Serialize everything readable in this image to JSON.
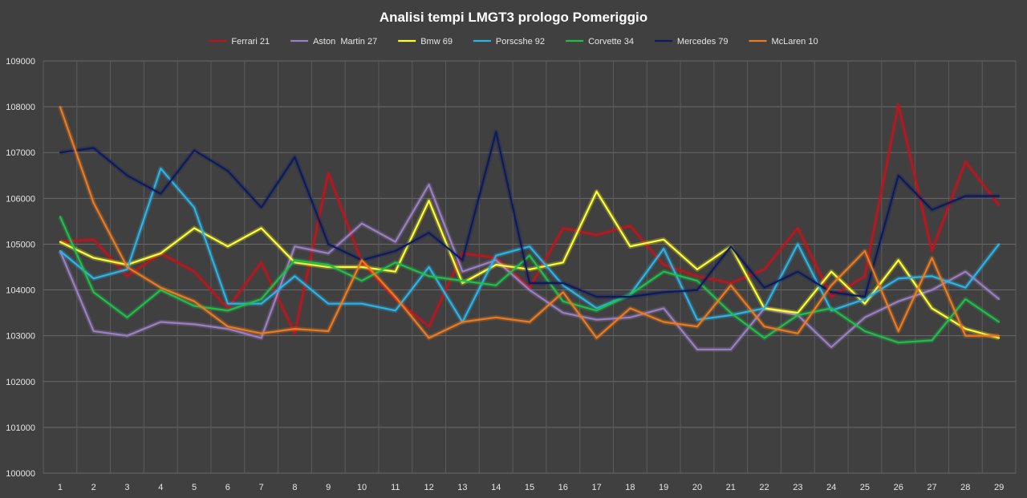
{
  "chart_data": {
    "type": "line",
    "title": "Analisi tempi LMGT3 prologo Pomeriggio",
    "xlabel": "",
    "ylabel": "",
    "ylim": [
      100000,
      109000
    ],
    "yticks": [
      100000,
      101000,
      102000,
      103000,
      104000,
      105000,
      106000,
      107000,
      108000,
      109000
    ],
    "x": [
      1,
      2,
      3,
      4,
      5,
      6,
      7,
      8,
      9,
      10,
      11,
      12,
      13,
      14,
      15,
      16,
      17,
      18,
      19,
      20,
      21,
      22,
      23,
      24,
      25,
      26,
      27,
      28,
      29
    ],
    "grid": true,
    "legend_position": "top",
    "series": [
      {
        "name": "Ferrari 21",
        "color": "#c0141c",
        "values": [
          105050,
          105100,
          104300,
          104800,
          104400,
          103600,
          104600,
          103050,
          106550,
          104600,
          103800,
          103200,
          104800,
          104700,
          104050,
          105350,
          105200,
          105400,
          104550,
          104300,
          104150,
          104450,
          105350,
          103850,
          104300,
          108050,
          104850,
          106800,
          105850
        ]
      },
      {
        "name": "Aston  Martin 27",
        "color": "#9b7fc4",
        "values": [
          104850,
          103100,
          103000,
          103300,
          103250,
          103150,
          102950,
          104950,
          104800,
          105450,
          105050,
          106300,
          104400,
          104650,
          104000,
          103500,
          103350,
          103400,
          103600,
          102700,
          102700,
          103600,
          103450,
          102750,
          103400,
          103750,
          104000,
          104400,
          103800
        ]
      },
      {
        "name": "Bmw 69",
        "color": "#ffff33",
        "values": [
          105050,
          104700,
          104550,
          104800,
          105350,
          104950,
          105350,
          104600,
          104500,
          104500,
          104400,
          105950,
          104150,
          104550,
          104450,
          104600,
          106150,
          104950,
          105100,
          104450,
          104950,
          103600,
          103500,
          104400,
          103700,
          104650,
          103600,
          103150,
          102950
        ]
      },
      {
        "name": "Porscshe 92",
        "color": "#2bb4e8",
        "values": [
          104850,
          104250,
          104450,
          106650,
          105800,
          103700,
          103700,
          104300,
          103700,
          103700,
          103550,
          104500,
          103300,
          104750,
          104950,
          104100,
          103600,
          103900,
          104900,
          103350,
          103450,
          103600,
          105000,
          103550,
          103800,
          104250,
          104300,
          104050,
          105000
        ]
      },
      {
        "name": "Corvette 34",
        "color": "#1fbf4a",
        "values": [
          105600,
          103950,
          103400,
          104000,
          103650,
          103550,
          103800,
          104650,
          104550,
          104200,
          104600,
          104300,
          104200,
          104100,
          104750,
          103750,
          103550,
          103900,
          104400,
          104200,
          103500,
          102950,
          103450,
          103600,
          103100,
          102850,
          102900,
          103800,
          103300
        ]
      },
      {
        "name": "Mercedes 79",
        "color": "#0d1a5e",
        "values": [
          107000,
          107100,
          106500,
          106100,
          107050,
          106600,
          105800,
          106900,
          105000,
          104650,
          104850,
          105250,
          104650,
          107450,
          104150,
          104150,
          103850,
          103850,
          103950,
          104000,
          104950,
          104050,
          104400,
          103950,
          103850,
          106500,
          105750,
          106050,
          106050
        ]
      },
      {
        "name": "McLaren 10",
        "color": "#ee7a1e",
        "values": [
          108000,
          105900,
          104500,
          104050,
          103750,
          103200,
          103050,
          103150,
          103100,
          104650,
          103850,
          102950,
          103300,
          103400,
          103300,
          103950,
          102950,
          103600,
          103300,
          103200,
          104100,
          103200,
          103050,
          104100,
          104850,
          103100,
          104700,
          103000,
          103000
        ]
      }
    ]
  }
}
